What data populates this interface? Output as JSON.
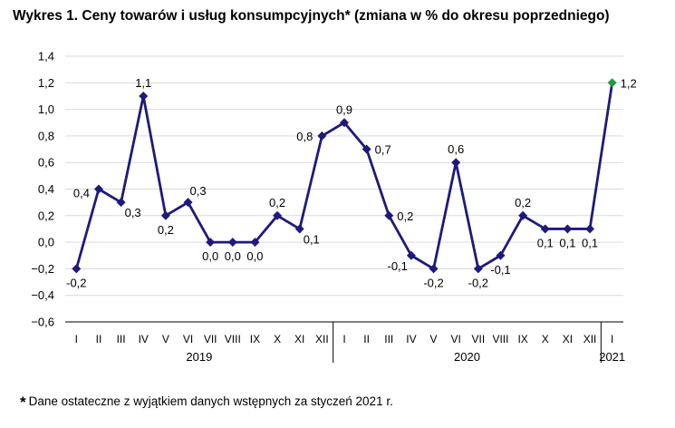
{
  "chart_data": {
    "type": "line",
    "title": "Wykres 1. Ceny towarów i usług konsumpcyjnych* (zmiana w % do okresu poprzedniego)",
    "footnote_marker": "*",
    "footnote": "Dane ostateczne z wyjątkiem danych wstępnych za styczeń 2021 r.",
    "categories": [
      "I",
      "II",
      "III",
      "IV",
      "V",
      "VI",
      "VII",
      "VIII",
      "IX",
      "X",
      "XI",
      "XII",
      "I",
      "II",
      "III",
      "IV",
      "V",
      "VI",
      "VII",
      "VIII",
      "IX",
      "X",
      "XI",
      "XII",
      "I"
    ],
    "groups": [
      {
        "label": "2019",
        "start": 0,
        "end": 11
      },
      {
        "label": "2020",
        "start": 12,
        "end": 23
      },
      {
        "label": "2021",
        "start": 24,
        "end": 24
      }
    ],
    "values": [
      -0.2,
      0.4,
      0.3,
      1.1,
      0.2,
      0.3,
      0.0,
      0.0,
      0.0,
      0.2,
      0.1,
      0.8,
      0.9,
      0.7,
      0.2,
      -0.1,
      -0.2,
      0.6,
      -0.2,
      -0.1,
      0.2,
      0.1,
      0.1,
      0.1,
      1.2
    ],
    "data_labels": [
      "-0,2",
      "0,4",
      "0,3",
      "1,1",
      "0,2",
      "0,3",
      "0,0",
      "0,0",
      "0,0",
      "0,2",
      "0,1",
      "0,8",
      "0,9",
      "0,7",
      "0,2",
      "-0,1",
      "-0,2",
      "0,6",
      "-0,2",
      "-0,1",
      "0,2",
      "0,1",
      "0,1",
      "0,1",
      "1,2"
    ],
    "label_pos": [
      "b",
      "tl",
      "br",
      "t",
      "b",
      "tr",
      "b",
      "b",
      "b",
      "t",
      "br",
      "l",
      "t",
      "r",
      "r",
      "bl",
      "b",
      "t",
      "b",
      "b",
      "t",
      "b",
      "b",
      "b",
      "r"
    ],
    "ylim": [
      -0.6,
      1.4
    ],
    "yticks": [
      -0.6,
      -0.4,
      -0.2,
      0.0,
      0.2,
      0.4,
      0.6,
      0.8,
      1.0,
      1.2,
      1.4
    ],
    "ytick_labels": [
      "−0,6",
      "−0,4",
      "−0,2",
      "0,0",
      "0,2",
      "0,4",
      "0,6",
      "0,8",
      "1,0",
      "1,2",
      "1,4"
    ],
    "grid": true,
    "legend": "none",
    "colors": {
      "line": "#1f1a7a",
      "highlight": "#1f9a3f",
      "grid": "#d9d9d9",
      "axis": "#000000"
    },
    "highlight_index": 24
  }
}
